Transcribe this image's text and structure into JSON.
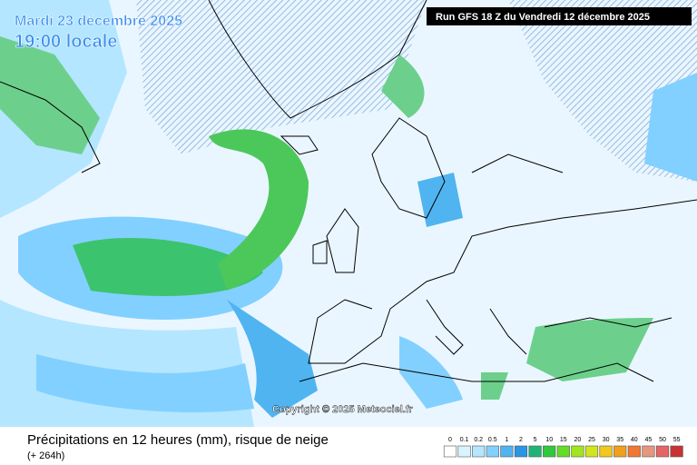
{
  "header": {
    "date": "Mardi 23 décembre 2025",
    "time": "19:00 locale",
    "run": "Run GFS 18 Z du Vendredi 12 décembre 2025"
  },
  "copyright": "Copyright © 2025 Meteociel.fr",
  "footer": {
    "title": "Précipitations en 12 heures (mm), risque de neige",
    "lead": "(+ 264h)"
  },
  "legend": {
    "items": [
      {
        "label": 0,
        "color": "#ffffff"
      },
      {
        "label": 0.1,
        "color": "#d8f4ff"
      },
      {
        "label": 0.2,
        "color": "#b4e6ff"
      },
      {
        "label": 0.5,
        "color": "#82d0ff"
      },
      {
        "label": 1,
        "color": "#50b4f0"
      },
      {
        "label": 2,
        "color": "#2a96e6"
      },
      {
        "label": 5,
        "color": "#1eb478"
      },
      {
        "label": 10,
        "color": "#32c83c"
      },
      {
        "label": 15,
        "color": "#64dc28"
      },
      {
        "label": 20,
        "color": "#a0e61e"
      },
      {
        "label": 25,
        "color": "#d2e61e"
      },
      {
        "label": 30,
        "color": "#f0c81e"
      },
      {
        "label": 35,
        "color": "#f0a01e"
      },
      {
        "label": 40,
        "color": "#f07832"
      },
      {
        "label": 45,
        "color": "#e6967e"
      },
      {
        "label": 50,
        "color": "#e66464"
      },
      {
        "label": 55,
        "color": "#c83232"
      }
    ]
  }
}
